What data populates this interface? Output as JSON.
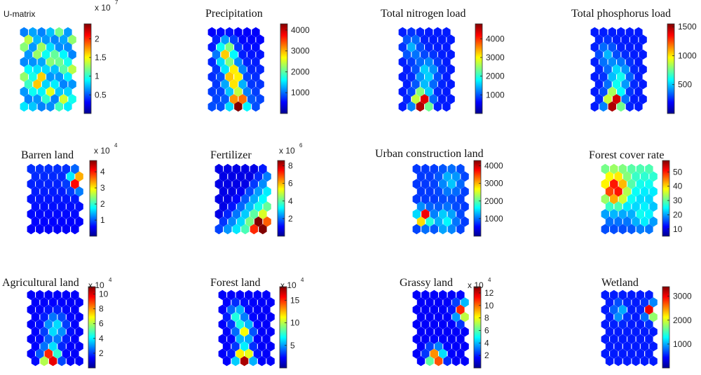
{
  "chart_data": [
    {
      "type": "heatmap",
      "title": "U-matrix",
      "colorbar": {
        "ticks": [
          "0.5",
          "1",
          "1.5",
          "2"
        ],
        "range": [
          0,
          2.4
        ],
        "multiplier": "x 10",
        "exponent": "7"
      }
    },
    {
      "type": "heatmap",
      "title": "Precipitation",
      "colorbar": {
        "ticks": [
          "1000",
          "2000",
          "3000",
          "4000"
        ],
        "range": [
          0,
          4300
        ],
        "multiplier": "",
        "exponent": ""
      }
    },
    {
      "type": "heatmap",
      "title": "Total nitrogen load",
      "colorbar": {
        "ticks": [
          "1000",
          "2000",
          "3000",
          "4000"
        ],
        "range": [
          0,
          4800
        ],
        "multiplier": "",
        "exponent": ""
      }
    },
    {
      "type": "heatmap",
      "title": "Total phosphorus load",
      "colorbar": {
        "ticks": [
          "500",
          "1000",
          "1500"
        ],
        "range": [
          0,
          1550
        ],
        "multiplier": "",
        "exponent": ""
      }
    },
    {
      "type": "heatmap",
      "title": "Barren land",
      "colorbar": {
        "ticks": [
          "1",
          "2",
          "3",
          "4"
        ],
        "range": [
          0,
          4.7
        ],
        "multiplier": "x 10",
        "exponent": "4"
      }
    },
    {
      "type": "heatmap",
      "title": "Fertilizer",
      "colorbar": {
        "ticks": [
          "2",
          "4",
          "6",
          "8"
        ],
        "range": [
          0,
          8.6
        ],
        "multiplier": "x 10",
        "exponent": "6"
      }
    },
    {
      "type": "heatmap",
      "title": "Urban construction land",
      "colorbar": {
        "ticks": [
          "1000",
          "2000",
          "3000",
          "4000"
        ],
        "range": [
          0,
          4300
        ],
        "multiplier": "",
        "exponent": ""
      }
    },
    {
      "type": "heatmap",
      "title": "Forest cover rate",
      "colorbar": {
        "ticks": [
          "10",
          "20",
          "30",
          "40",
          "50"
        ],
        "range": [
          5,
          58
        ],
        "multiplier": "",
        "exponent": ""
      }
    },
    {
      "type": "heatmap",
      "title": "Agricultural land",
      "colorbar": {
        "ticks": [
          "2",
          "4",
          "6",
          "8",
          "10"
        ],
        "range": [
          0,
          11
        ],
        "multiplier": "x 10",
        "exponent": "4"
      }
    },
    {
      "type": "heatmap",
      "title": "Forest land",
      "colorbar": {
        "ticks": [
          "5",
          "10",
          "15"
        ],
        "range": [
          0,
          18
        ],
        "multiplier": "x 10",
        "exponent": "4"
      }
    },
    {
      "type": "heatmap",
      "title": "Grassy land",
      "colorbar": {
        "ticks": [
          "2",
          "4",
          "6",
          "8",
          "10",
          "12"
        ],
        "range": [
          0,
          13
        ],
        "multiplier": "x 10",
        "exponent": "4"
      }
    },
    {
      "type": "heatmap",
      "title": "Wetland",
      "colorbar": {
        "ticks": [
          "1000",
          "2000",
          "3000"
        ],
        "range": [
          0,
          3400
        ],
        "multiplier": "",
        "exponent": ""
      }
    }
  ],
  "colormap": "jet"
}
